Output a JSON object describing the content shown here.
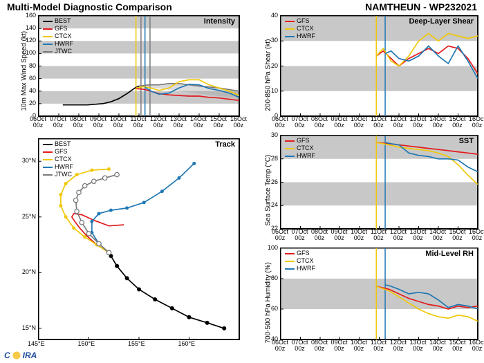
{
  "header": {
    "title_left": "Multi-Model Diagnostic Comparison",
    "title_right": "NAMTHEUN - WP232021"
  },
  "colors": {
    "BEST": "#000000",
    "GFS": "#e31a1c",
    "CTCX": "#f0c808",
    "HWRF": "#1f78b4",
    "JTWC": "#7a7a7a",
    "band": "#c8c8c8",
    "grid": "#000000",
    "border": "#000000",
    "vline_yellow": "#f0c808",
    "vline_gray": "#7a7a7a",
    "vline_blue": "#1f78b4"
  },
  "typography": {
    "header_fontsize": 14,
    "panel_title_fontsize": 11,
    "tick_fontsize": 9,
    "legend_fontsize": 9,
    "ylabel_fontsize": 10
  },
  "time_axis": {
    "labels": [
      "06Oct\n00z",
      "07Oct\n00z",
      "08Oct\n00z",
      "09Oct\n00z",
      "10Oct\n00z",
      "11Oct\n00z",
      "12Oct\n00z",
      "13Oct\n00z",
      "14Oct\n00z",
      "15Oct\n00z",
      "16Oct\n00z"
    ],
    "x": [
      0,
      1,
      2,
      3,
      4,
      5,
      6,
      7,
      8,
      9,
      10
    ]
  },
  "intensity": {
    "title": "Intensity",
    "ylabel": "10m Max Wind Speed (kt)",
    "ylim": [
      0,
      160
    ],
    "yticks": [
      0,
      20,
      40,
      60,
      80,
      100,
      120,
      140,
      160
    ],
    "bands": [
      [
        20,
        40
      ],
      [
        60,
        80
      ],
      [
        100,
        120
      ],
      [
        140,
        160
      ]
    ],
    "vlines": [
      {
        "x": 4.85,
        "color": "#f0c808"
      },
      {
        "x": 5.1,
        "color": "#7a7a7a"
      },
      {
        "x": 5.3,
        "color": "#1f78b4"
      },
      {
        "x": 5.55,
        "color": "#7a7a7a"
      }
    ],
    "legend": [
      "BEST",
      "GFS",
      "CTCX",
      "HWRF",
      "JTWC"
    ],
    "series": {
      "BEST": {
        "x": [
          1.2,
          1.6,
          2.0,
          2.4,
          2.8,
          3.2,
          3.6,
          4.0,
          4.4,
          4.8,
          5.0
        ],
        "y": [
          18,
          18,
          18,
          18,
          19,
          20,
          23,
          28,
          36,
          45,
          48
        ]
      },
      "JTWC": {
        "x": [
          5.0,
          5.5,
          6.0,
          6.5,
          7.0,
          7.5,
          8.0,
          9.0,
          10.0
        ],
        "y": [
          48,
          50,
          50,
          52,
          52,
          50,
          48,
          45,
          40
        ]
      },
      "GFS": {
        "x": [
          4.85,
          5.2,
          5.6,
          6.0,
          6.5,
          7.0,
          7.5,
          8.0,
          8.5,
          9.0,
          9.5,
          10.0
        ],
        "y": [
          44,
          43,
          40,
          36,
          34,
          33,
          32,
          32,
          30,
          29,
          27,
          25
        ]
      },
      "CTCX": {
        "x": [
          4.85,
          5.2,
          5.6,
          6.0,
          6.5,
          7.0,
          7.5,
          8.0,
          8.5,
          9.0,
          9.5,
          10.0
        ],
        "y": [
          45,
          47,
          45,
          41,
          45,
          55,
          58,
          58,
          50,
          45,
          40,
          33
        ]
      },
      "HWRF": {
        "x": [
          5.3,
          5.6,
          6.0,
          6.5,
          7.0,
          7.5,
          8.0,
          8.5,
          9.0,
          9.5,
          10.0
        ],
        "y": [
          46,
          40,
          35,
          37,
          45,
          51,
          50,
          44,
          41,
          37,
          30
        ]
      }
    }
  },
  "shear": {
    "title": "Deep-Layer Shear",
    "ylabel": "200-850 hPa Shear (kt)",
    "ylim": [
      0,
      40
    ],
    "yticks": [
      0,
      10,
      20,
      30,
      40
    ],
    "bands": [
      [
        10,
        20
      ],
      [
        30,
        40
      ]
    ],
    "vlines": [
      {
        "x": 4.85,
        "color": "#f0c808"
      },
      {
        "x": 5.3,
        "color": "#1f78b4"
      }
    ],
    "legend": [
      "GFS",
      "CTCX",
      "HWRF"
    ],
    "series": {
      "GFS": {
        "x": [
          4.85,
          5.2,
          5.6,
          6.0,
          6.5,
          7.0,
          7.5,
          8.0,
          8.5,
          9.0,
          9.5,
          10.0
        ],
        "y": [
          24,
          26,
          23,
          20,
          23,
          25,
          27,
          25,
          28,
          27,
          23,
          17
        ]
      },
      "CTCX": {
        "x": [
          4.85,
          5.2,
          5.6,
          6.0,
          6.5,
          7.0,
          7.5,
          8.0,
          8.5,
          9.0,
          9.5,
          10.0
        ],
        "y": [
          24,
          27,
          22,
          20,
          24,
          30,
          33,
          30,
          33,
          32,
          31,
          32
        ]
      },
      "HWRF": {
        "x": [
          5.3,
          5.6,
          6.0,
          6.5,
          7.0,
          7.5,
          8.0,
          8.5,
          9.0,
          9.5,
          10.0
        ],
        "y": [
          25,
          26,
          23,
          22,
          24,
          28,
          24,
          21,
          28,
          22,
          15
        ]
      }
    }
  },
  "sst": {
    "title": "SST",
    "ylabel": "Sea Surface Temp (°C)",
    "ylim": [
      22,
      30
    ],
    "yticks": [
      22,
      24,
      26,
      28,
      30
    ],
    "bands": [
      [
        24,
        26
      ],
      [
        28,
        30
      ]
    ],
    "vlines": [
      {
        "x": 4.85,
        "color": "#f0c808"
      },
      {
        "x": 5.3,
        "color": "#1f78b4"
      }
    ],
    "legend": [
      "GFS",
      "CTCX",
      "HWRF"
    ],
    "series": {
      "GFS": {
        "x": [
          4.85,
          5.5,
          6.0,
          6.5,
          7.0,
          7.5,
          8.0,
          8.5,
          9.0,
          9.5,
          10.0
        ],
        "y": [
          29.4,
          29.3,
          29.2,
          29.1,
          29.0,
          28.9,
          28.8,
          28.7,
          28.6,
          28.5,
          28.4
        ]
      },
      "CTCX": {
        "x": [
          4.85,
          5.5,
          6.0,
          6.5,
          7.0,
          7.5,
          8.0,
          8.5,
          9.0,
          9.5,
          10.0
        ],
        "y": [
          29.4,
          29.2,
          29.0,
          28.9,
          28.8,
          28.7,
          28.5,
          28.2,
          27.5,
          26.6,
          25.8
        ]
      },
      "HWRF": {
        "x": [
          5.3,
          5.6,
          6.0,
          6.5,
          7.0,
          7.5,
          8.0,
          8.5,
          9.0,
          9.5,
          10.0
        ],
        "y": [
          29.4,
          29.3,
          29.2,
          28.5,
          28.3,
          28.2,
          28.0,
          28.0,
          27.9,
          27.3,
          26.9
        ]
      }
    }
  },
  "rh": {
    "title": "Mid-Level RH",
    "ylabel": "700-500 hPa Humidity (%)",
    "ylim": [
      40,
      100
    ],
    "yticks": [
      40,
      60,
      80,
      100
    ],
    "bands": [
      [
        60,
        80
      ]
    ],
    "vlines": [
      {
        "x": 4.85,
        "color": "#f0c808"
      },
      {
        "x": 5.3,
        "color": "#1f78b4"
      }
    ],
    "legend": [
      "GFS",
      "CTCX",
      "HWRF"
    ],
    "series": {
      "GFS": {
        "x": [
          4.85,
          5.5,
          6.0,
          6.5,
          7.0,
          7.5,
          8.0,
          8.5,
          9.0,
          9.5,
          10.0
        ],
        "y": [
          75,
          73,
          70,
          67,
          65,
          63,
          62,
          60,
          62,
          61,
          62
        ]
      },
      "CTCX": {
        "x": [
          4.85,
          5.5,
          6.0,
          6.5,
          7.0,
          7.5,
          8.0,
          8.5,
          9.0,
          9.5,
          10.0
        ],
        "y": [
          75,
          72,
          68,
          64,
          60,
          57,
          55,
          54,
          56,
          55,
          52
        ]
      },
      "HWRF": {
        "x": [
          5.3,
          5.6,
          6.0,
          6.5,
          7.0,
          7.5,
          8.0,
          8.5,
          9.0,
          9.5,
          10.0
        ],
        "y": [
          76,
          75,
          73,
          70,
          71,
          70,
          66,
          61,
          63,
          62,
          60
        ]
      }
    }
  },
  "track": {
    "title": "Track",
    "xlabel": "",
    "xlim": [
      145,
      165
    ],
    "ylim": [
      14,
      32
    ],
    "xticks": [
      145,
      150,
      155,
      160
    ],
    "xtick_labels": [
      "145°E",
      "150°E",
      "155°E",
      "160°E"
    ],
    "yticks": [
      15,
      20,
      25,
      30
    ],
    "ytick_labels": [
      "15°N",
      "20°N",
      "25°N",
      "30°N"
    ],
    "legend": [
      "BEST",
      "GFS",
      "CTCX",
      "HWRF",
      "JTWC"
    ],
    "series": {
      "BEST": {
        "x": [
          163.5,
          161.8,
          160.0,
          158.3,
          156.6,
          155.0,
          153.8,
          152.8,
          152.2,
          152.0
        ],
        "y": [
          15.0,
          15.5,
          16.0,
          16.8,
          17.6,
          18.5,
          19.5,
          20.6,
          21.5,
          21.8
        ],
        "marker": "circle"
      },
      "GFS": {
        "x": [
          152.0,
          150.8,
          149.8,
          149.1,
          148.6,
          148.3,
          148.5,
          149.3,
          150.5,
          152.0,
          153.5
        ],
        "y": [
          21.8,
          22.5,
          23.3,
          24.0,
          24.6,
          25.0,
          25.3,
          25.2,
          24.7,
          24.2,
          24.3
        ],
        "marker": "none"
      },
      "CTCX": {
        "x": [
          152.0,
          150.8,
          149.6,
          148.5,
          147.7,
          147.2,
          147.2,
          147.7,
          148.8,
          150.3,
          152.0
        ],
        "y": [
          21.8,
          22.5,
          23.2,
          24.0,
          25.0,
          26.0,
          27.0,
          28.0,
          28.8,
          29.2,
          29.3
        ],
        "marker": "dot"
      },
      "HWRF": {
        "x": [
          152.0,
          151.0,
          150.3,
          150.3,
          151.0,
          152.2,
          153.8,
          155.5,
          157.3,
          159.0,
          160.5
        ],
        "y": [
          21.8,
          22.6,
          23.6,
          24.6,
          25.3,
          25.6,
          25.8,
          26.3,
          27.3,
          28.5,
          29.8
        ],
        "marker": "dot"
      },
      "JTWC": {
        "x": [
          152.0,
          151.0,
          150.0,
          149.3,
          148.8,
          148.7,
          149.0,
          149.6,
          150.5,
          151.6,
          152.8
        ],
        "y": [
          21.8,
          22.6,
          23.5,
          24.5,
          25.5,
          26.5,
          27.2,
          27.8,
          28.2,
          28.5,
          28.8
        ],
        "marker": "open"
      }
    }
  },
  "logo_text": "IRA"
}
